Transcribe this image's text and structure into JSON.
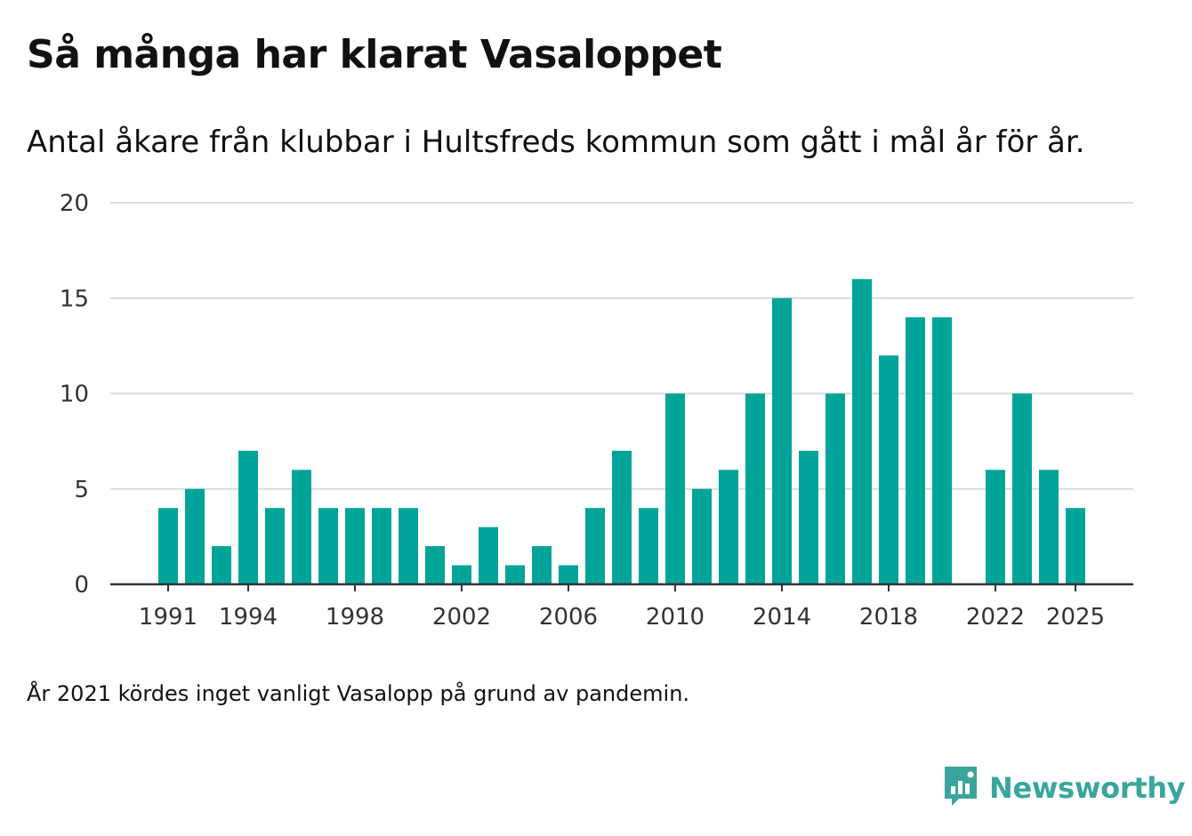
{
  "chart_data": {
    "type": "bar",
    "title": "Så många har klarat Vasaloppet",
    "subtitle": "Antal åkare från klubbar i Hultsfreds kommun som gått i mål år för år.",
    "xlabel": "",
    "ylabel": "",
    "ylim": [
      0,
      20
    ],
    "yticks": [
      "0",
      "5",
      "10",
      "15",
      "20"
    ],
    "xtick_labels": [
      "1991",
      "1994",
      "1998",
      "2002",
      "2006",
      "2010",
      "2014",
      "2018",
      "2022",
      "2025"
    ],
    "categories": [
      "1991",
      "1992",
      "1993",
      "1994",
      "1995",
      "1996",
      "1997",
      "1998",
      "1999",
      "2000",
      "2001",
      "2002",
      "2003",
      "2004",
      "2005",
      "2006",
      "2007",
      "2008",
      "2009",
      "2010",
      "2011",
      "2012",
      "2013",
      "2014",
      "2015",
      "2016",
      "2017",
      "2018",
      "2019",
      "2020",
      "2021",
      "2022",
      "2023",
      "2024",
      "2025"
    ],
    "values": [
      4,
      5,
      2,
      7,
      4,
      6,
      4,
      4,
      4,
      4,
      2,
      1,
      3,
      1,
      2,
      1,
      4,
      7,
      4,
      10,
      5,
      6,
      10,
      15,
      7,
      10,
      16,
      12,
      14,
      14,
      null,
      6,
      10,
      6,
      4
    ],
    "grid": true,
    "bar_color": "#00a499"
  },
  "footnote": "År 2021 kördes inget vanligt Vasalopp på grund av pandemin.",
  "brand": {
    "name": "Newsworthy",
    "logo_icon": "newsworthy-logo-icon",
    "color": "#3aa59c"
  }
}
